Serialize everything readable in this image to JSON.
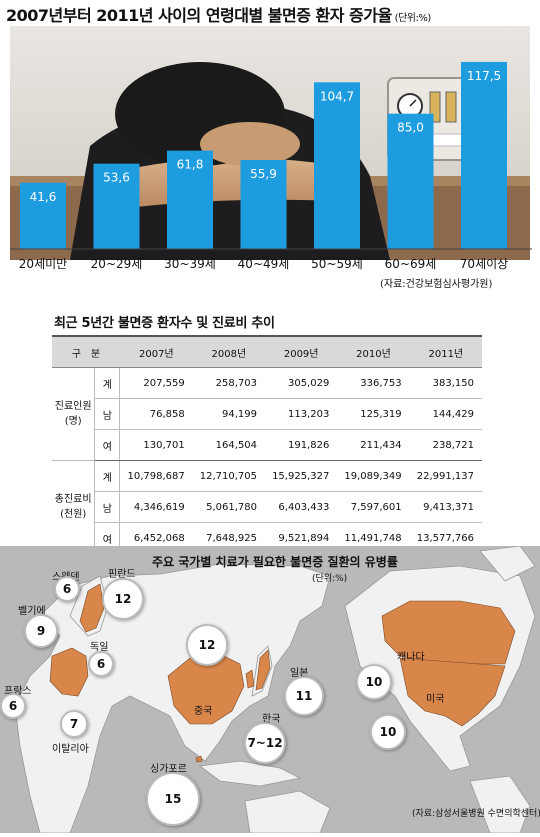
{
  "chart_data": {
    "type": "bar",
    "title": "2007년부터 2011년 사이의 연령대별 불면증 환자 증가율",
    "unit": "(단위:%)",
    "categories": [
      "20세미만",
      "20~29세",
      "30~39세",
      "40~49세",
      "50~59세",
      "60~69세",
      "70세이상"
    ],
    "values": [
      41.6,
      53.6,
      61.8,
      55.9,
      104.7,
      85.0,
      117.5
    ],
    "value_labels": [
      "41,6",
      "53,6",
      "61,8",
      "55,9",
      "104,7",
      "85,0",
      "117,5"
    ],
    "ylim": [
      0,
      125
    ],
    "source": "(자료:건강보험심사평가원)",
    "bar_color": "#1e9ce0"
  },
  "table": {
    "title": "최근 5년간 불면증 환자수 및 진료비 추이",
    "header_label": "구　분",
    "years": [
      "2007년",
      "2008년",
      "2009년",
      "2010년",
      "2011년"
    ],
    "groups": [
      {
        "label": "진료인원",
        "unit": "(명)",
        "rows": [
          {
            "sub": "계",
            "values": [
              "207,559",
              "258,703",
              "305,029",
              "336,753",
              "383,150"
            ]
          },
          {
            "sub": "남",
            "values": [
              "76,858",
              "94,199",
              "113,203",
              "125,319",
              "144,429"
            ]
          },
          {
            "sub": "여",
            "values": [
              "130,701",
              "164,504",
              "191,826",
              "211,434",
              "238,721"
            ]
          }
        ]
      },
      {
        "label": "총진료비",
        "unit": "(천원)",
        "rows": [
          {
            "sub": "계",
            "values": [
              "10,798,687",
              "12,710,705",
              "15,925,327",
              "19,089,349",
              "22,991,137"
            ]
          },
          {
            "sub": "남",
            "values": [
              "4,346,619",
              "5,061,780",
              "6,403,433",
              "7,597,601",
              "9,413,371"
            ]
          },
          {
            "sub": "여",
            "values": [
              "6,452,068",
              "7,648,925",
              "9,521,894",
              "11,491,748",
              "13,577,766"
            ]
          }
        ]
      }
    ]
  },
  "map": {
    "title": "주요 국가별 치료가 필요한 불면증 질환의 유병률",
    "unit": "(단위:%)",
    "source": "(자료:삼성서울병원 수면의학센터)",
    "countries": [
      {
        "name": "스웨덴",
        "value": "6"
      },
      {
        "name": "핀란드",
        "value": "12"
      },
      {
        "name": "벨기에",
        "value": "9"
      },
      {
        "name": "독일",
        "value": "6"
      },
      {
        "name": "프랑스",
        "value": "6"
      },
      {
        "name": "이탈리아",
        "value": "7"
      },
      {
        "name": "중국",
        "value": "12"
      },
      {
        "name": "일본",
        "value": "11"
      },
      {
        "name": "한국",
        "value": "7~12"
      },
      {
        "name": "싱가포르",
        "value": "15"
      },
      {
        "name": "캐나다",
        "value": "10"
      },
      {
        "name": "미국",
        "value": "10"
      }
    ],
    "colors": {
      "ocean": "#b9b9b9",
      "land": "#f1f1f1",
      "highlight": "#d9864b"
    }
  }
}
